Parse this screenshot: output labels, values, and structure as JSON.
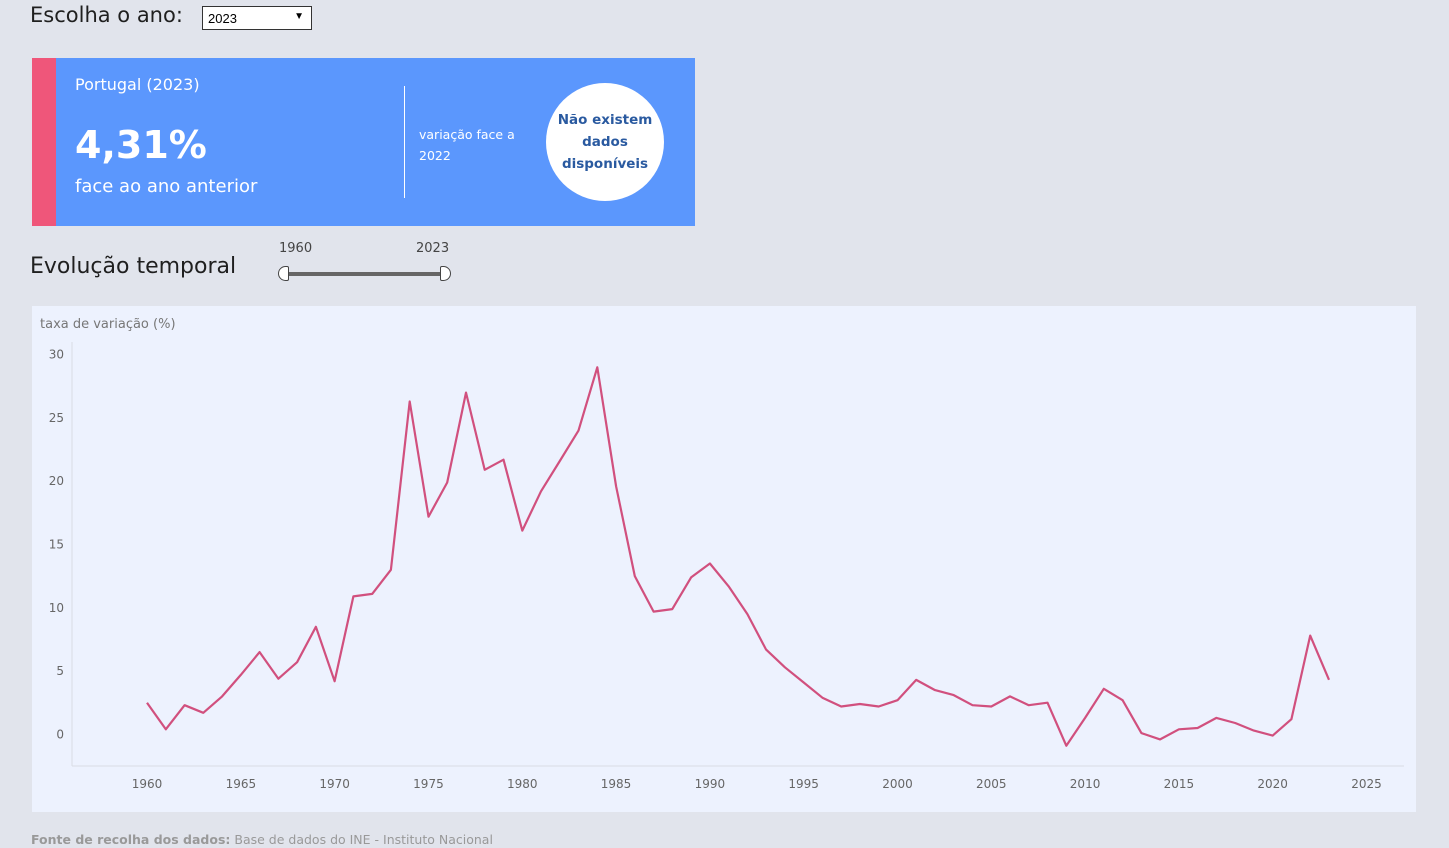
{
  "filter": {
    "label": "Escolha o ano:",
    "selected": "2023"
  },
  "card": {
    "country": "Portugal (2023)",
    "value": "4,31%",
    "subtitle": "face ao ano anterior",
    "variation_label": "variação face a 2022",
    "variation_value": "Não existem dados disponíveis",
    "accent_color": "#ef567a",
    "background_color": "#5b97fd"
  },
  "evolution": {
    "title": "Evolução temporal",
    "range_start": "1960",
    "range_end": "2023"
  },
  "source": {
    "label": "Fonte de recolha dos dados:",
    "text": "Base de dados do INE - Instituto Nacional"
  },
  "chart_data": {
    "type": "line",
    "ylabel": "taxa de variação (%)",
    "xlabel": "",
    "xlim": [
      1956,
      2027
    ],
    "ylim": [
      -2.5,
      31
    ],
    "xticks": [
      1960,
      1965,
      1970,
      1975,
      1980,
      1985,
      1990,
      1995,
      2000,
      2005,
      2010,
      2015,
      2020,
      2025
    ],
    "yticks": [
      0,
      5,
      10,
      15,
      20,
      25,
      30
    ],
    "grid": false,
    "line_color": "#d1507e",
    "series": [
      {
        "x": [
          1960,
          1961,
          1962,
          1963,
          1964,
          1965,
          1966,
          1967,
          1968,
          1969,
          1970,
          1971,
          1972,
          1973,
          1974,
          1975,
          1976,
          1977,
          1978,
          1979,
          1980,
          1981,
          1982,
          1983,
          1984,
          1985,
          1986,
          1987,
          1988,
          1989,
          1990,
          1991,
          1992,
          1993,
          1994,
          1995,
          1996,
          1997,
          1998,
          1999,
          2000,
          2001,
          2002,
          2003,
          2004,
          2005,
          2006,
          2007,
          2008,
          2009,
          2010,
          2011,
          2012,
          2013,
          2014,
          2015,
          2016,
          2017,
          2018,
          2019,
          2020,
          2021,
          2022,
          2023
        ],
        "values": [
          2.5,
          0.4,
          2.3,
          1.7,
          3.0,
          4.7,
          6.5,
          4.4,
          5.7,
          8.5,
          4.2,
          10.9,
          11.1,
          13.0,
          26.3,
          17.2,
          19.9,
          27.0,
          20.9,
          21.7,
          16.1,
          19.2,
          21.6,
          24.0,
          29.0,
          19.6,
          12.5,
          9.7,
          9.9,
          12.4,
          13.5,
          11.7,
          9.5,
          6.7,
          5.3,
          4.1,
          2.9,
          2.2,
          2.4,
          2.2,
          2.7,
          4.3,
          3.5,
          3.1,
          2.3,
          2.2,
          3.0,
          2.3,
          2.5,
          -0.9,
          1.3,
          3.6,
          2.7,
          0.1,
          -0.4,
          0.4,
          0.5,
          1.3,
          0.9,
          0.3,
          -0.1,
          1.2,
          7.8,
          4.31
        ]
      }
    ]
  }
}
